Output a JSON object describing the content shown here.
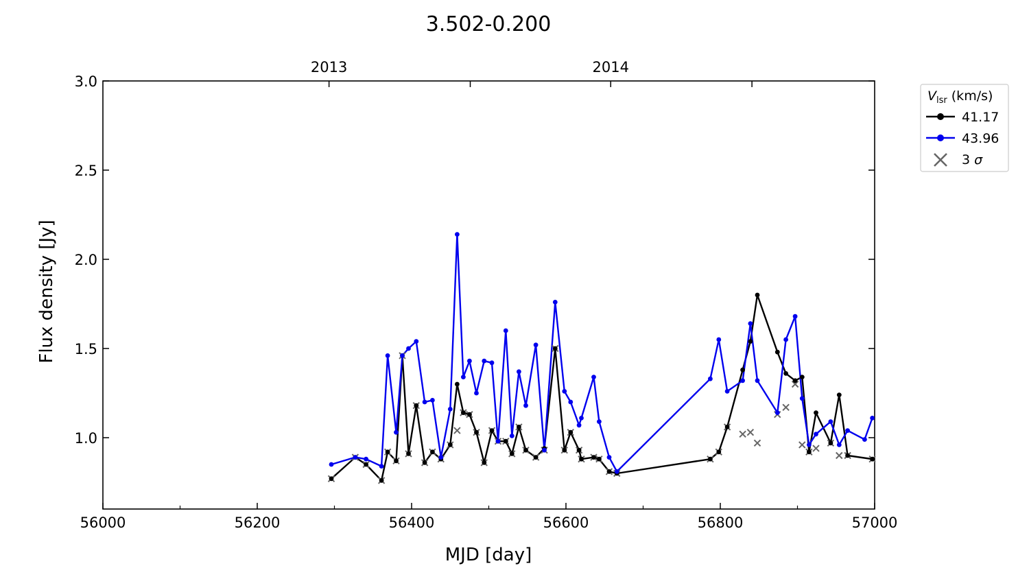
{
  "chart_data": {
    "type": "line",
    "title": "3.502-0.200",
    "xlabel": "MJD [day]",
    "ylabel": "Flux density [Jy]",
    "xlim": [
      56000,
      57000
    ],
    "ylim": [
      0.6,
      3.0
    ],
    "x_ticks": [
      56000,
      56200,
      56400,
      56600,
      56800,
      57000
    ],
    "y_ticks": [
      1.0,
      1.5,
      2.0,
      2.5,
      3.0
    ],
    "y_tick_labels": [
      "1.0",
      "1.5",
      "2.0",
      "2.5",
      "3.0"
    ],
    "top_axis": [
      {
        "label": "2013",
        "x": 56293
      },
      {
        "label": "",
        "x": 56476
      },
      {
        "label": "2014",
        "x": 56658
      },
      {
        "label": "",
        "x": 56841
      }
    ],
    "grid": false,
    "legend": {
      "placement": "outside-right",
      "title_main": "V",
      "title_sub": "lsr",
      "title_rest": " (km/s)",
      "sigma_prefix": "3 ",
      "sigma_symbol": "σ"
    },
    "colors": {
      "s1": "#000000",
      "s2": "#0000ee",
      "sigma": "#666666"
    },
    "series": [
      {
        "name": "41.17",
        "points": [
          [
            56296,
            0.77
          ],
          [
            56327,
            0.89
          ],
          [
            56341,
            0.85
          ],
          [
            56361,
            0.76
          ],
          [
            56369,
            0.92
          ],
          [
            56380,
            0.87
          ],
          [
            56388,
            1.46
          ],
          [
            56396,
            0.91
          ],
          [
            56406,
            1.18
          ],
          [
            56417,
            0.86
          ],
          [
            56427,
            0.92
          ],
          [
            56438,
            0.88
          ],
          [
            56450,
            0.96
          ],
          [
            56459,
            1.3
          ],
          [
            56467,
            1.14
          ],
          [
            56475,
            1.13
          ],
          [
            56484,
            1.03
          ],
          [
            56494,
            0.86
          ],
          [
            56504,
            1.04
          ],
          [
            56512,
            0.98
          ],
          [
            56522,
            0.98
          ],
          [
            56530,
            0.91
          ],
          [
            56539,
            1.06
          ],
          [
            56548,
            0.93
          ],
          [
            56561,
            0.89
          ],
          [
            56572,
            0.94
          ],
          [
            56586,
            1.5
          ],
          [
            56598,
            0.93
          ],
          [
            56606,
            1.03
          ],
          [
            56617,
            0.93
          ],
          [
            56620,
            0.88
          ],
          [
            56636,
            0.89
          ],
          [
            56643,
            0.88
          ],
          [
            56656,
            0.81
          ],
          [
            56666,
            0.8
          ],
          [
            56787,
            0.88
          ],
          [
            56798,
            0.92
          ],
          [
            56809,
            1.06
          ],
          [
            56829,
            1.38
          ],
          [
            56839,
            1.54
          ],
          [
            56848,
            1.8
          ],
          [
            56874,
            1.48
          ],
          [
            56885,
            1.36
          ],
          [
            56897,
            1.32
          ],
          [
            56906,
            1.34
          ],
          [
            56915,
            0.92
          ],
          [
            56924,
            1.14
          ],
          [
            56943,
            0.97
          ],
          [
            56954,
            1.24
          ],
          [
            56965,
            0.9
          ],
          [
            56997,
            0.88
          ]
        ]
      },
      {
        "name": "43.96",
        "points": [
          [
            56296,
            0.85
          ],
          [
            56327,
            0.89
          ],
          [
            56341,
            0.88
          ],
          [
            56361,
            0.84
          ],
          [
            56369,
            1.46
          ],
          [
            56380,
            1.03
          ],
          [
            56388,
            1.46
          ],
          [
            56396,
            1.5
          ],
          [
            56406,
            1.54
          ],
          [
            56417,
            1.2
          ],
          [
            56427,
            1.21
          ],
          [
            56438,
            0.89
          ],
          [
            56450,
            1.16
          ],
          [
            56459,
            2.14
          ],
          [
            56467,
            1.34
          ],
          [
            56475,
            1.43
          ],
          [
            56484,
            1.25
          ],
          [
            56494,
            1.43
          ],
          [
            56504,
            1.42
          ],
          [
            56512,
            0.98
          ],
          [
            56522,
            1.6
          ],
          [
            56530,
            1.01
          ],
          [
            56539,
            1.37
          ],
          [
            56548,
            1.18
          ],
          [
            56561,
            1.52
          ],
          [
            56572,
            0.93
          ],
          [
            56586,
            1.76
          ],
          [
            56598,
            1.26
          ],
          [
            56606,
            1.2
          ],
          [
            56617,
            1.07
          ],
          [
            56620,
            1.11
          ],
          [
            56636,
            1.34
          ],
          [
            56643,
            1.09
          ],
          [
            56656,
            0.89
          ],
          [
            56666,
            0.81
          ],
          [
            56787,
            1.33
          ],
          [
            56798,
            1.55
          ],
          [
            56809,
            1.26
          ],
          [
            56829,
            1.32
          ],
          [
            56839,
            1.64
          ],
          [
            56848,
            1.32
          ],
          [
            56874,
            1.14
          ],
          [
            56885,
            1.55
          ],
          [
            56897,
            1.68
          ],
          [
            56906,
            1.22
          ],
          [
            56915,
            0.96
          ],
          [
            56924,
            1.02
          ],
          [
            56943,
            1.09
          ],
          [
            56954,
            0.96
          ],
          [
            56965,
            1.04
          ],
          [
            56987,
            0.99
          ],
          [
            56997,
            1.11
          ]
        ]
      }
    ],
    "sigma_points": [
      [
        56296,
        0.77
      ],
      [
        56327,
        0.89
      ],
      [
        56341,
        0.85
      ],
      [
        56361,
        0.76
      ],
      [
        56369,
        0.92
      ],
      [
        56380,
        0.87
      ],
      [
        56388,
        1.46
      ],
      [
        56396,
        0.91
      ],
      [
        56406,
        1.18
      ],
      [
        56417,
        0.86
      ],
      [
        56427,
        0.92
      ],
      [
        56438,
        0.88
      ],
      [
        56450,
        0.96
      ],
      [
        56459,
        1.04
      ],
      [
        56467,
        1.14
      ],
      [
        56475,
        1.13
      ],
      [
        56484,
        1.03
      ],
      [
        56494,
        0.86
      ],
      [
        56504,
        1.04
      ],
      [
        56512,
        0.98
      ],
      [
        56522,
        0.98
      ],
      [
        56530,
        0.91
      ],
      [
        56539,
        1.06
      ],
      [
        56548,
        0.93
      ],
      [
        56561,
        0.89
      ],
      [
        56572,
        0.93
      ],
      [
        56586,
        1.5
      ],
      [
        56598,
        0.93
      ],
      [
        56606,
        1.03
      ],
      [
        56617,
        0.93
      ],
      [
        56620,
        0.88
      ],
      [
        56636,
        0.89
      ],
      [
        56643,
        0.88
      ],
      [
        56656,
        0.81
      ],
      [
        56666,
        0.8
      ],
      [
        56787,
        0.88
      ],
      [
        56798,
        0.92
      ],
      [
        56809,
        1.06
      ],
      [
        56829,
        1.02
      ],
      [
        56839,
        1.03
      ],
      [
        56848,
        0.97
      ],
      [
        56874,
        1.13
      ],
      [
        56885,
        1.17
      ],
      [
        56897,
        1.3
      ],
      [
        56906,
        0.96
      ],
      [
        56915,
        0.92
      ],
      [
        56924,
        0.94
      ],
      [
        56943,
        0.97
      ],
      [
        56954,
        0.9
      ],
      [
        56965,
        0.9
      ],
      [
        56997,
        0.88
      ]
    ]
  }
}
